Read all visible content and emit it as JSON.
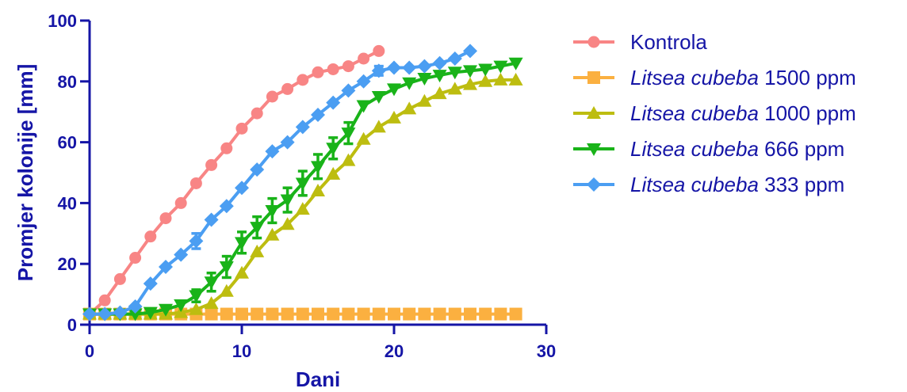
{
  "chart_data": {
    "type": "line",
    "xlabel": "Dani",
    "ylabel": "Promjer kolonije [mm]",
    "xlim": [
      0,
      30
    ],
    "ylim": [
      0,
      100
    ],
    "xticks": [
      0,
      10,
      20,
      30
    ],
    "yticks": [
      0,
      20,
      40,
      60,
      80,
      100
    ],
    "legend_position": "right",
    "grid": false,
    "axis_color": "#1515a6",
    "series": [
      {
        "name": "Kontrola",
        "name_italic": "",
        "name_rest": "Kontrola",
        "color": "#f88585",
        "marker": "circle",
        "x": [
          0,
          1,
          2,
          3,
          4,
          5,
          6,
          7,
          8,
          9,
          10,
          11,
          12,
          13,
          14,
          15,
          16,
          17,
          18,
          19
        ],
        "y": [
          3.5,
          8,
          15,
          22,
          29,
          35,
          40,
          46.5,
          52.5,
          58,
          64.5,
          69.5,
          75,
          77.5,
          80.5,
          83,
          84,
          85,
          87.5,
          90
        ],
        "err": [
          0,
          0,
          0,
          0,
          0,
          0,
          0,
          0,
          0,
          0,
          0,
          0,
          0,
          0,
          0,
          0,
          0,
          0,
          0,
          0
        ]
      },
      {
        "name": "Litsea cubeba 1500 ppm",
        "name_italic": "Litsea cubeba",
        "name_rest": " 1500 ppm",
        "color": "#fbb040",
        "marker": "square",
        "x": [
          0,
          1,
          2,
          3,
          4,
          5,
          6,
          7,
          8,
          9,
          10,
          11,
          12,
          13,
          14,
          15,
          16,
          17,
          18,
          19,
          20,
          21,
          22,
          23,
          24,
          25,
          26,
          27,
          28
        ],
        "y": [
          3.5,
          3.5,
          3.5,
          3.5,
          3.5,
          3.5,
          3.5,
          3.5,
          3.5,
          3.5,
          3.5,
          3.5,
          3.5,
          3.5,
          3.5,
          3.5,
          3.5,
          3.5,
          3.5,
          3.5,
          3.5,
          3.5,
          3.5,
          3.5,
          3.5,
          3.5,
          3.5,
          3.5,
          3.5
        ],
        "err": [
          0,
          0,
          0,
          0,
          0,
          0,
          0,
          0,
          0,
          0,
          0,
          0,
          0,
          0,
          0,
          0,
          0,
          0,
          0,
          0,
          0,
          0,
          0,
          0,
          0,
          0,
          0,
          0,
          0
        ]
      },
      {
        "name": "Litsea cubeba 1000 ppm",
        "name_italic": "Litsea cubeba",
        "name_rest": " 1000 ppm",
        "color": "#bdbd10",
        "marker": "triangle-up",
        "x": [
          0,
          1,
          2,
          3,
          4,
          5,
          6,
          7,
          8,
          9,
          10,
          11,
          12,
          13,
          14,
          15,
          16,
          17,
          18,
          19,
          20,
          21,
          22,
          23,
          24,
          25,
          26,
          27,
          28
        ],
        "y": [
          3.5,
          3.5,
          3.5,
          3.5,
          3.5,
          3.5,
          4,
          5,
          7,
          11,
          17,
          24,
          29.5,
          33,
          38,
          44,
          49.5,
          54,
          61,
          65,
          68,
          71,
          73.5,
          76,
          77.5,
          79,
          80,
          80.5,
          80.5
        ],
        "err": [
          0,
          0,
          0,
          0,
          0,
          0,
          0,
          0,
          0,
          0,
          0,
          0,
          0,
          0,
          0,
          0,
          0,
          0,
          0,
          0,
          0,
          0,
          0,
          0,
          0,
          0,
          0,
          0,
          0
        ]
      },
      {
        "name": "Litsea cubeba 666 ppm",
        "name_italic": "Litsea cubeba",
        "name_rest": " 666 ppm",
        "color": "#19b319",
        "marker": "triangle-down",
        "x": [
          0,
          1,
          2,
          3,
          4,
          5,
          6,
          7,
          8,
          9,
          10,
          11,
          12,
          13,
          14,
          15,
          16,
          17,
          18,
          19,
          20,
          21,
          22,
          23,
          24,
          25,
          26,
          27,
          28
        ],
        "y": [
          3.5,
          3.5,
          3.5,
          3.5,
          4,
          5,
          6.5,
          9.5,
          14,
          19,
          27,
          32,
          37.5,
          41,
          46.5,
          52,
          58,
          63,
          72,
          75,
          77.5,
          79.5,
          81,
          82,
          83,
          83.5,
          84,
          85,
          86
        ],
        "err": [
          0,
          0,
          0,
          0,
          0,
          0,
          0,
          2,
          3,
          3.5,
          3.5,
          3.5,
          4,
          4,
          4,
          4,
          3.5,
          3.5,
          0,
          0,
          0,
          0,
          0,
          0,
          0,
          0,
          0,
          0,
          0
        ]
      },
      {
        "name": "Litsea cubeba 333 ppm",
        "name_italic": "Litsea cubeba",
        "name_rest": " 333 ppm",
        "color": "#4b9ef2",
        "marker": "diamond",
        "x": [
          0,
          1,
          2,
          3,
          4,
          5,
          6,
          7,
          8,
          9,
          10,
          11,
          12,
          13,
          14,
          15,
          16,
          17,
          18,
          19,
          20,
          21,
          22,
          23,
          24,
          25
        ],
        "y": [
          3.5,
          3.5,
          4,
          6,
          13.5,
          19,
          23,
          27.5,
          34.5,
          39,
          45,
          51,
          57,
          60,
          65,
          69,
          73,
          77,
          80,
          83.5,
          84.5,
          84.5,
          85,
          86,
          87.5,
          90
        ],
        "err": [
          0,
          0,
          0,
          0,
          0,
          0,
          0,
          2.5,
          0,
          0,
          0,
          0,
          0,
          0,
          0,
          0,
          0,
          0,
          0,
          1.5,
          0,
          0,
          0,
          0,
          0,
          0
        ]
      }
    ]
  }
}
